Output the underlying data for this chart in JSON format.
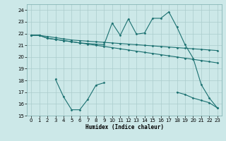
{
  "xlabel": "Humidex (Indice chaleur)",
  "bg_color": "#cce8e8",
  "grid_color": "#aacccc",
  "line_color": "#1a7070",
  "xlim": [
    -0.5,
    23.5
  ],
  "ylim": [
    15,
    24.5
  ],
  "yticks": [
    15,
    16,
    17,
    18,
    19,
    20,
    21,
    22,
    23,
    24
  ],
  "xticks": [
    0,
    1,
    2,
    3,
    4,
    5,
    6,
    7,
    8,
    9,
    10,
    11,
    12,
    13,
    14,
    15,
    16,
    17,
    18,
    19,
    20,
    21,
    22,
    23
  ],
  "line_flat1_x": [
    0,
    1,
    2,
    3,
    4,
    5,
    6,
    7,
    8,
    9,
    10,
    11,
    12,
    13,
    14,
    15,
    16,
    17,
    18,
    19,
    20,
    21,
    22,
    23
  ],
  "line_flat1_y": [
    21.85,
    21.85,
    21.75,
    21.65,
    21.55,
    21.45,
    21.4,
    21.35,
    21.3,
    21.25,
    21.2,
    21.15,
    21.1,
    21.05,
    21.0,
    20.95,
    20.9,
    20.85,
    20.8,
    20.75,
    20.7,
    20.65,
    20.6,
    20.55
  ],
  "line_flat2_x": [
    0,
    1,
    2,
    3,
    4,
    5,
    6,
    7,
    8,
    9,
    10,
    11,
    12,
    13,
    14,
    15,
    16,
    17,
    18,
    19,
    20,
    21,
    22,
    23
  ],
  "line_flat2_y": [
    21.85,
    21.85,
    21.6,
    21.5,
    21.4,
    21.3,
    21.2,
    21.1,
    21.0,
    20.9,
    20.8,
    20.7,
    20.6,
    20.5,
    20.4,
    20.3,
    20.2,
    20.1,
    20.0,
    19.9,
    19.8,
    19.7,
    19.6,
    19.5
  ],
  "line_jagged_x": [
    0,
    1,
    2,
    3,
    4,
    5,
    6,
    7,
    8,
    9,
    10,
    11,
    12,
    13,
    14,
    15,
    16,
    17,
    18,
    19,
    20,
    21,
    22,
    23
  ],
  "line_jagged_y": [
    21.85,
    21.85,
    21.6,
    21.5,
    21.4,
    21.3,
    21.2,
    21.15,
    21.1,
    21.05,
    22.9,
    21.85,
    23.25,
    21.95,
    22.05,
    23.3,
    23.3,
    23.85,
    22.55,
    21.05,
    19.9,
    17.65,
    16.5,
    15.65
  ],
  "line_low_seg1_x": [
    3,
    4,
    5,
    6,
    7,
    8,
    9
  ],
  "line_low_seg1_y": [
    18.1,
    16.6,
    15.5,
    15.5,
    16.4,
    17.6,
    17.8
  ],
  "line_low_seg2_x": [
    18,
    19,
    20,
    21,
    22,
    23
  ],
  "line_low_seg2_y": [
    17.0,
    16.8,
    16.5,
    16.3,
    16.1,
    15.65
  ]
}
